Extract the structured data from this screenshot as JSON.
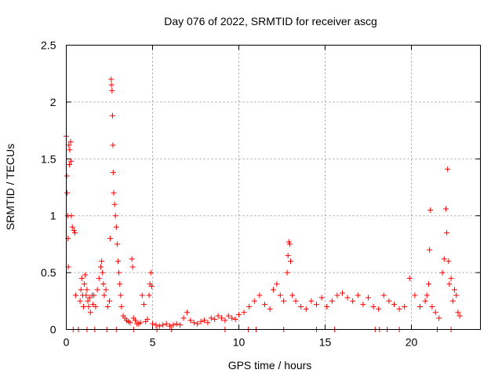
{
  "chart_data": {
    "type": "scatter",
    "title": "Day 076 of 2022, SRMTID for receiver ascg",
    "xlabel": "GPS time / hours",
    "ylabel": "SRMTID / TECUs",
    "xlim": [
      0,
      24
    ],
    "ylim": [
      0,
      2.5
    ],
    "xticks": [
      0,
      5,
      10,
      15,
      20
    ],
    "yticks": [
      0,
      0.5,
      1,
      1.5,
      2,
      2.5
    ],
    "x_tick_labels": [
      "0",
      "5",
      "10",
      "15",
      "20"
    ],
    "y_tick_labels": [
      "0",
      "0.5",
      "1",
      "1.5",
      "2",
      "2.5"
    ],
    "grid": true,
    "marker": "+",
    "color": "#ff0000",
    "series": [
      {
        "name": "SRMTID",
        "x": [
          0.0,
          0.03,
          0.05,
          0.08,
          0.1,
          0.12,
          0.15,
          0.18,
          0.2,
          0.25,
          0.28,
          0.3,
          0.35,
          0.45,
          0.5,
          0.55,
          0.8,
          0.85,
          0.9,
          0.95,
          1.0,
          1.05,
          1.1,
          1.15,
          1.2,
          1.25,
          1.3,
          1.35,
          1.4,
          1.5,
          1.55,
          1.6,
          1.7,
          1.8,
          1.9,
          2.0,
          2.05,
          2.1,
          2.15,
          2.2,
          2.3,
          2.4,
          2.5,
          2.55,
          2.6,
          2.62,
          2.65,
          2.68,
          2.7,
          2.72,
          2.75,
          2.8,
          2.85,
          2.9,
          2.95,
          3.0,
          3.05,
          3.1,
          3.15,
          3.2,
          3.3,
          3.4,
          3.5,
          3.6,
          3.7,
          3.8,
          3.85,
          3.9,
          4.0,
          4.1,
          4.2,
          4.3,
          4.4,
          4.5,
          4.6,
          4.7,
          4.8,
          4.85,
          4.9,
          4.95,
          5.0,
          5.2,
          5.4,
          5.6,
          5.8,
          6.0,
          6.2,
          6.4,
          6.6,
          6.8,
          7.0,
          7.2,
          7.4,
          7.6,
          7.8,
          8.0,
          8.2,
          8.4,
          8.6,
          8.8,
          9.0,
          9.2,
          9.4,
          9.6,
          9.8,
          10.0,
          10.3,
          10.6,
          10.9,
          11.2,
          11.5,
          11.8,
          12.0,
          12.2,
          12.4,
          12.6,
          12.8,
          12.85,
          12.9,
          12.95,
          13.0,
          13.1,
          13.3,
          13.6,
          13.9,
          14.2,
          14.5,
          14.8,
          15.1,
          15.4,
          15.7,
          16.0,
          16.3,
          16.6,
          16.9,
          17.2,
          17.5,
          17.8,
          18.1,
          18.4,
          18.7,
          19.0,
          19.3,
          19.6,
          19.9,
          20.2,
          20.5,
          20.8,
          20.9,
          21.0,
          21.05,
          21.1,
          21.2,
          21.4,
          21.6,
          21.8,
          21.9,
          22.0,
          22.05,
          22.1,
          22.15,
          22.2,
          22.3,
          22.4,
          22.5,
          22.6,
          22.7,
          22.8,
          0.4,
          0.7,
          1.2,
          1.65,
          2.35,
          2.9,
          3.9,
          5.25,
          6.1,
          9.2,
          10.55,
          11.0,
          12.6,
          14.5,
          15.55,
          17.9,
          18.15,
          18.6,
          19.3,
          21.5,
          22.3
        ],
        "y": [
          1.7,
          1.35,
          1.2,
          1.0,
          0.8,
          0.55,
          1.62,
          1.45,
          1.58,
          1.65,
          1.48,
          1.0,
          0.9,
          0.87,
          0.85,
          0.3,
          0.25,
          0.35,
          0.45,
          0.3,
          0.2,
          0.4,
          0.48,
          0.3,
          0.35,
          0.25,
          0.2,
          0.28,
          0.15,
          0.3,
          0.22,
          0.3,
          0.2,
          0.35,
          0.45,
          0.55,
          0.6,
          0.5,
          0.4,
          0.3,
          0.35,
          0.2,
          0.25,
          0.8,
          2.2,
          2.15,
          2.1,
          1.88,
          1.62,
          1.38,
          1.2,
          1.1,
          1.0,
          0.9,
          0.75,
          0.6,
          0.5,
          0.4,
          0.3,
          0.2,
          0.12,
          0.1,
          0.08,
          0.07,
          0.06,
          0.62,
          0.55,
          0.1,
          0.08,
          0.05,
          0.05,
          0.06,
          0.3,
          0.22,
          0.07,
          0.09,
          0.3,
          0.4,
          0.5,
          0.38,
          0.05,
          0.04,
          0.03,
          0.04,
          0.05,
          0.03,
          0.04,
          0.05,
          0.04,
          0.1,
          0.15,
          0.08,
          0.06,
          0.05,
          0.07,
          0.08,
          0.06,
          0.1,
          0.09,
          0.12,
          0.1,
          0.08,
          0.12,
          0.1,
          0.09,
          0.13,
          0.15,
          0.2,
          0.25,
          0.3,
          0.22,
          0.18,
          0.35,
          0.4,
          0.3,
          0.25,
          0.5,
          0.65,
          0.77,
          0.75,
          0.6,
          0.3,
          0.25,
          0.2,
          0.18,
          0.25,
          0.22,
          0.28,
          0.2,
          0.25,
          0.3,
          0.32,
          0.28,
          0.25,
          0.3,
          0.22,
          0.28,
          0.2,
          0.18,
          0.3,
          0.25,
          0.22,
          0.18,
          0.2,
          0.45,
          0.3,
          0.2,
          0.25,
          0.3,
          0.4,
          0.7,
          1.05,
          0.2,
          0.15,
          0.1,
          0.5,
          0.62,
          1.06,
          0.85,
          1.41,
          0.6,
          0.4,
          0.45,
          0.25,
          0.35,
          0.3,
          0.15,
          0.12,
          0.0,
          0.0,
          0.0,
          0.0,
          0.0,
          0.0,
          0.0,
          0.0,
          0.0,
          0.0,
          0.0,
          0.0,
          0.0,
          0.0,
          0.0,
          0.0,
          0.0,
          0.0,
          0.0,
          0.0,
          0.0
        ]
      }
    ]
  }
}
